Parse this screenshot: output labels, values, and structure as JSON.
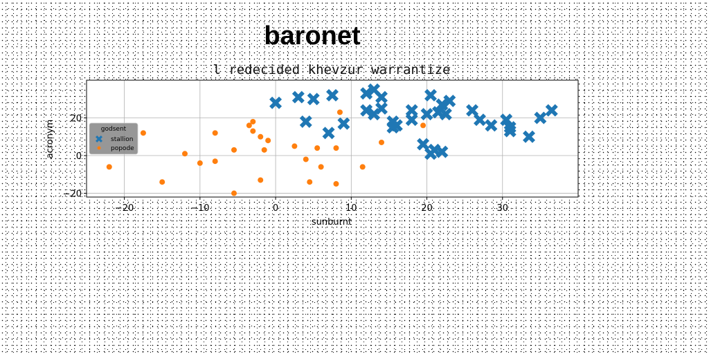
{
  "chart_data": {
    "type": "scatter",
    "suptitle": "baronet",
    "title": "l redecided khevzur warrantize",
    "xlabel": "sunburnt",
    "ylabel": "acronym",
    "xlim": [
      -25,
      40
    ],
    "ylim": [
      -22,
      40
    ],
    "xticks": [
      -20,
      -10,
      0,
      10,
      20,
      30
    ],
    "yticks": [
      -20,
      0,
      20
    ],
    "xtick_labels": [
      "−20",
      "−10",
      "0",
      "10",
      "20",
      "30"
    ],
    "ytick_labels": [
      "−20",
      "0",
      "20"
    ],
    "grid": true,
    "legend": {
      "title": "godsent",
      "placement": "center-left"
    },
    "series": [
      {
        "name": "stallion",
        "marker": "X",
        "color": "#1f77b4",
        "points": [
          [
            0,
            28
          ],
          [
            3,
            31
          ],
          [
            5,
            30
          ],
          [
            7.5,
            32
          ],
          [
            4,
            18
          ],
          [
            7,
            12
          ],
          [
            9,
            17
          ],
          [
            12,
            33
          ],
          [
            13,
            35
          ],
          [
            14,
            31
          ],
          [
            12,
            24
          ],
          [
            13,
            22
          ],
          [
            14,
            25
          ],
          [
            15.5,
            18
          ],
          [
            16,
            16
          ],
          [
            15.5,
            15
          ],
          [
            18,
            24
          ],
          [
            18,
            19
          ],
          [
            20.5,
            32
          ],
          [
            20,
            22
          ],
          [
            21.5,
            23
          ],
          [
            22,
            27
          ],
          [
            23,
            29
          ],
          [
            22.5,
            22
          ],
          [
            19.5,
            6
          ],
          [
            20.5,
            1
          ],
          [
            21,
            3
          ],
          [
            22,
            2
          ],
          [
            26,
            24
          ],
          [
            27,
            19
          ],
          [
            28.5,
            16
          ],
          [
            30.5,
            19
          ],
          [
            31,
            15
          ],
          [
            31,
            13
          ],
          [
            33.5,
            10
          ],
          [
            35,
            20
          ],
          [
            36.5,
            24
          ]
        ]
      },
      {
        "name": "popode",
        "marker": "o",
        "color": "#ff7f0e",
        "points": [
          [
            -22,
            -6
          ],
          [
            -17.5,
            12
          ],
          [
            -15,
            -14
          ],
          [
            -12,
            1
          ],
          [
            -10,
            -4
          ],
          [
            -8,
            12
          ],
          [
            -8,
            -3
          ],
          [
            -5.5,
            3
          ],
          [
            -5.5,
            -20
          ],
          [
            -3.5,
            16
          ],
          [
            -3,
            18
          ],
          [
            -3,
            13
          ],
          [
            -2,
            10
          ],
          [
            -1.5,
            3
          ],
          [
            -1,
            8
          ],
          [
            -2,
            -13
          ],
          [
            2.5,
            5
          ],
          [
            4,
            -2
          ],
          [
            4.5,
            -14
          ],
          [
            5.5,
            4
          ],
          [
            6,
            -6
          ],
          [
            8,
            4
          ],
          [
            8,
            -15
          ],
          [
            8.5,
            23
          ],
          [
            11.5,
            -6
          ],
          [
            14,
            7
          ],
          [
            19.5,
            16
          ]
        ]
      }
    ]
  }
}
